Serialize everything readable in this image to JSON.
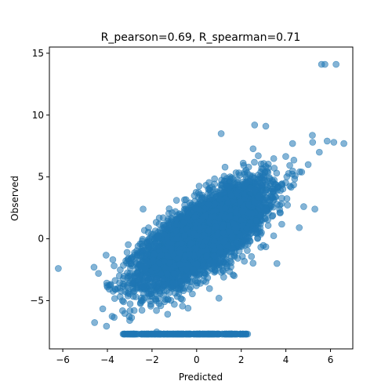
{
  "chart_data": {
    "type": "scatter",
    "title": "R_pearson=0.69, R_spearman=0.71",
    "xlabel": "Predicted",
    "ylabel": "Observed",
    "xlim": [
      -6.6,
      7.0
    ],
    "ylim": [
      -8.9,
      15.5
    ],
    "x_ticks": [
      -6,
      -4,
      -2,
      0,
      2,
      4,
      6
    ],
    "y_ticks": [
      -5,
      0,
      5,
      10,
      15
    ],
    "x_tick_labels": [
      "−6",
      "−4",
      "−2",
      "0",
      "2",
      "4",
      "6"
    ],
    "y_tick_labels": [
      "−5",
      "0",
      "5",
      "10",
      "15"
    ],
    "grid": false,
    "legend": "none",
    "marker_color": "#1f77b4",
    "marker_alpha": 0.55,
    "dense_cloud": {
      "x_range": [
        -4.6,
        6.6
      ],
      "pearson_r": 0.69,
      "spearman_r": 0.71,
      "slope": 1.1,
      "intercept": 0.0,
      "residual_sd": 1.35,
      "approx_count": 6000
    },
    "floor_row": {
      "y": -7.7,
      "x_range": [
        -3.3,
        2.3
      ],
      "approx_count": 250
    },
    "points": [
      {
        "x": 5.6,
        "y": 14.1
      },
      {
        "x": 5.75,
        "y": 14.1
      },
      {
        "x": 6.25,
        "y": 14.1
      },
      {
        "x": -6.2,
        "y": -2.4
      },
      {
        "x": 6.6,
        "y": 7.7
      },
      {
        "x": 5.85,
        "y": 7.9
      },
      {
        "x": 6.15,
        "y": 7.8
      },
      {
        "x": 5.2,
        "y": 7.8
      },
      {
        "x": 5.5,
        "y": 7.0
      },
      {
        "x": 1.1,
        "y": 8.5
      },
      {
        "x": 2.6,
        "y": 9.2
      },
      {
        "x": 3.1,
        "y": 9.1
      },
      {
        "x": 4.3,
        "y": 7.7
      },
      {
        "x": 4.8,
        "y": 2.6
      },
      {
        "x": 5.3,
        "y": 2.4
      },
      {
        "x": -4.6,
        "y": -2.3
      },
      {
        "x": -4.0,
        "y": -3.9
      },
      {
        "x": -4.4,
        "y": -2.8
      },
      {
        "x": -3.0,
        "y": -6.6
      },
      {
        "x": -2.8,
        "y": -5.8
      },
      {
        "x": -1.3,
        "y": -6.1
      },
      {
        "x": -1.0,
        "y": -5.3
      },
      {
        "x": 3.6,
        "y": -2.0
      },
      {
        "x": 4.6,
        "y": 0.9
      },
      {
        "x": 5.0,
        "y": 6.0
      },
      {
        "x": -2.4,
        "y": 2.4
      },
      {
        "x": 3.8,
        "y": 4.4
      },
      {
        "x": 1.0,
        "y": -4.8
      },
      {
        "x": -1.8,
        "y": -5.8
      }
    ]
  }
}
